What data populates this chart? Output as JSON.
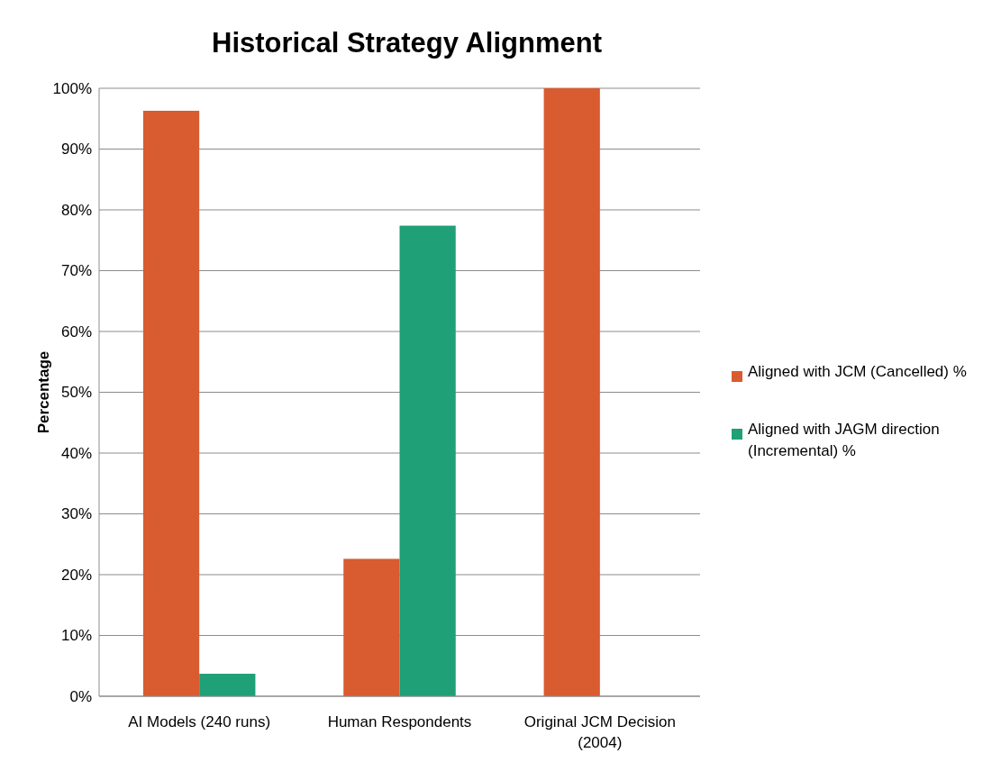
{
  "chart_data": {
    "type": "bar",
    "title": "Historical Strategy Alignment",
    "ylabel": "Percentage",
    "categories": [
      "AI Models (240 runs)",
      "Human Respondents",
      "Original JCM Decision (2004)"
    ],
    "series": [
      {
        "name": "Aligned with JCM (Cancelled) %",
        "color": "#d95b30",
        "values": [
          96.3,
          22.6,
          100
        ]
      },
      {
        "name": "Aligned with JAGM direction (Incremental) %",
        "color": "#1fa077",
        "values": [
          3.7,
          77.4,
          0
        ]
      }
    ],
    "ylim": [
      0,
      100
    ],
    "yticks": [
      {
        "value": 0,
        "label": "0%"
      },
      {
        "value": 10,
        "label": "10%"
      },
      {
        "value": 20,
        "label": "20%"
      },
      {
        "value": 30,
        "label": "30%"
      },
      {
        "value": 40,
        "label": "40%"
      },
      {
        "value": 50,
        "label": "50%"
      },
      {
        "value": 60,
        "label": "60%"
      },
      {
        "value": 70,
        "label": "70%"
      },
      {
        "value": 80,
        "label": "80%"
      },
      {
        "value": 90,
        "label": "90%"
      },
      {
        "value": 100,
        "label": "100%"
      }
    ],
    "grid": "y",
    "legend": "right"
  }
}
